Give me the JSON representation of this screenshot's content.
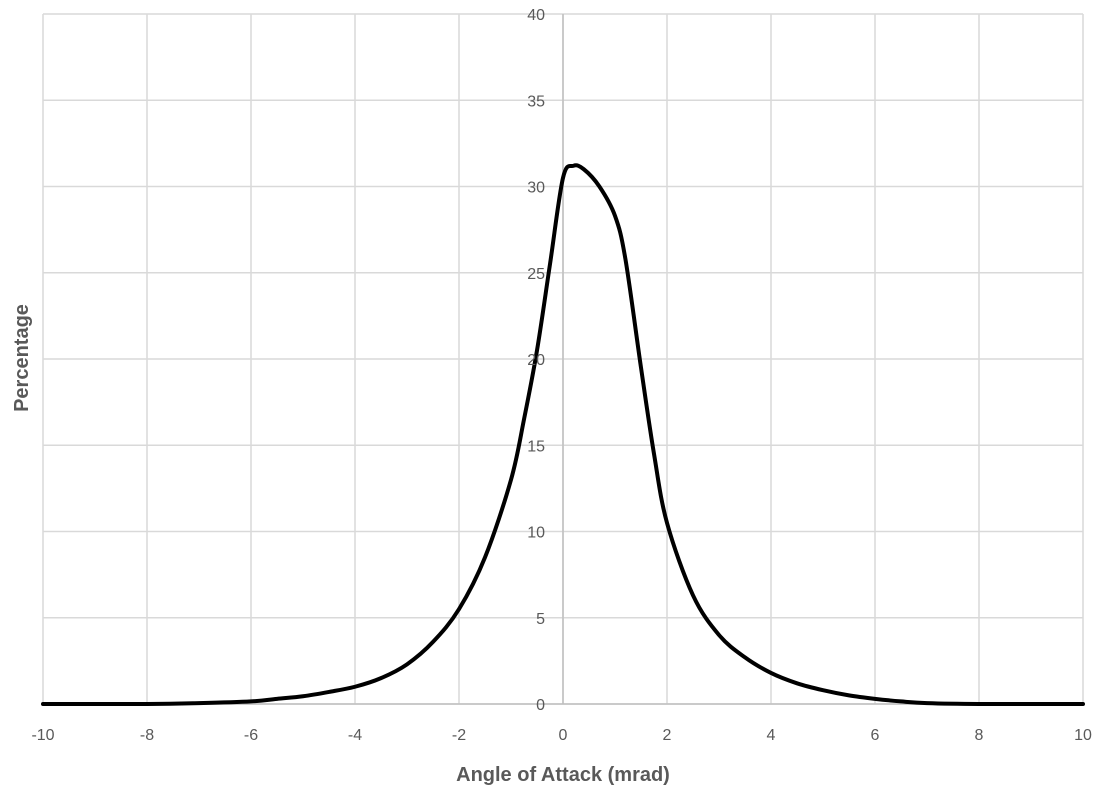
{
  "chart_data": {
    "type": "line",
    "title": "",
    "xlabel": "Angle of Attack (mrad)",
    "ylabel": "Percentage",
    "xlim": [
      -10,
      10
    ],
    "ylim": [
      0,
      40
    ],
    "x_ticks": [
      -10,
      -8,
      -6,
      -4,
      -2,
      0,
      2,
      4,
      6,
      8,
      10
    ],
    "y_ticks": [
      0,
      5,
      10,
      15,
      20,
      25,
      30,
      35,
      40
    ],
    "x_tick_labels": [
      "-10",
      "-8",
      "-6",
      "-4",
      "-2",
      "0",
      "2",
      "4",
      "6",
      "8",
      "10"
    ],
    "y_tick_labels": [
      "0",
      "5",
      "10",
      "15",
      "20",
      "25",
      "30",
      "35",
      "40"
    ],
    "grid": true,
    "legend": "none",
    "series": [
      {
        "color": "#000000",
        "x": [
          -10,
          -8,
          -7,
          -6,
          -5.5,
          -5,
          -4.5,
          -4,
          -3.5,
          -3,
          -2.5,
          -2,
          -1.5,
          -1,
          -0.75,
          -0.5,
          -0.25,
          0,
          0.2,
          0.4,
          0.7,
          1.0,
          1.2,
          1.5,
          1.75,
          2.0,
          2.5,
          3.0,
          3.5,
          4.0,
          4.5,
          5.0,
          5.5,
          6.0,
          6.5,
          7.0,
          8.0,
          10
        ],
        "y": [
          0,
          0,
          0.05,
          0.15,
          0.3,
          0.45,
          0.7,
          1.0,
          1.5,
          2.3,
          3.6,
          5.5,
          8.5,
          13,
          16.5,
          20.5,
          25.5,
          30.5,
          31.2,
          31.0,
          30.0,
          28.3,
          25.8,
          19.5,
          14.5,
          10.5,
          6.3,
          4.0,
          2.7,
          1.8,
          1.2,
          0.8,
          0.5,
          0.3,
          0.15,
          0.05,
          0,
          0
        ]
      }
    ]
  }
}
